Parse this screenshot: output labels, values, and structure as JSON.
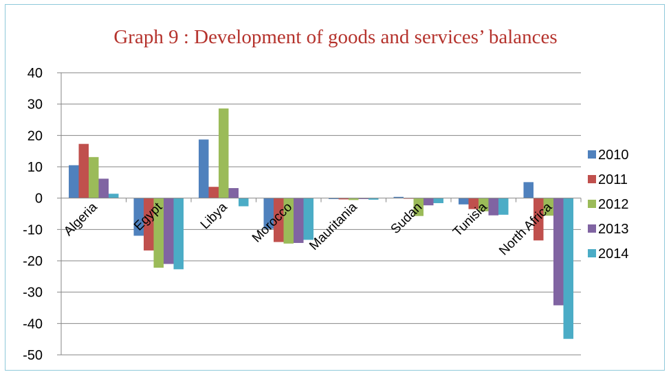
{
  "chart_data": {
    "type": "bar",
    "title": "Graph 9 : Development of goods and services’ balances",
    "xlabel": "",
    "ylabel": "",
    "ylim": [
      -50,
      40
    ],
    "yticks": [
      40,
      30,
      20,
      10,
      0,
      -10,
      -20,
      -30,
      -40,
      -50
    ],
    "grid": true,
    "legend_position": "right",
    "categories": [
      "Algeria",
      "Egypt",
      "Libya",
      "Morocco",
      "Mauritania",
      "Sudan",
      "Tunisia",
      "North Africa"
    ],
    "series": [
      {
        "name": "2010",
        "color": "#4f81bd",
        "values": [
          10.5,
          -12.0,
          18.7,
          -9.8,
          -0.3,
          0.4,
          -2.0,
          5.1
        ]
      },
      {
        "name": "2011",
        "color": "#c0504d",
        "values": [
          17.3,
          -16.7,
          3.6,
          -14.0,
          -0.4,
          -0.2,
          -3.5,
          -13.5
        ]
      },
      {
        "name": "2012",
        "color": "#9bbb59",
        "values": [
          13.1,
          -22.2,
          28.6,
          -14.5,
          -0.6,
          -5.7,
          -4.2,
          -5.6
        ]
      },
      {
        "name": "2013",
        "color": "#8064a2",
        "values": [
          6.2,
          -21.0,
          3.2,
          -14.3,
          -0.3,
          -2.3,
          -5.5,
          -34.2
        ]
      },
      {
        "name": "2014",
        "color": "#4bacc6",
        "values": [
          1.4,
          -22.7,
          -2.6,
          -13.3,
          -0.5,
          -1.6,
          -5.3,
          -44.9
        ]
      }
    ]
  }
}
